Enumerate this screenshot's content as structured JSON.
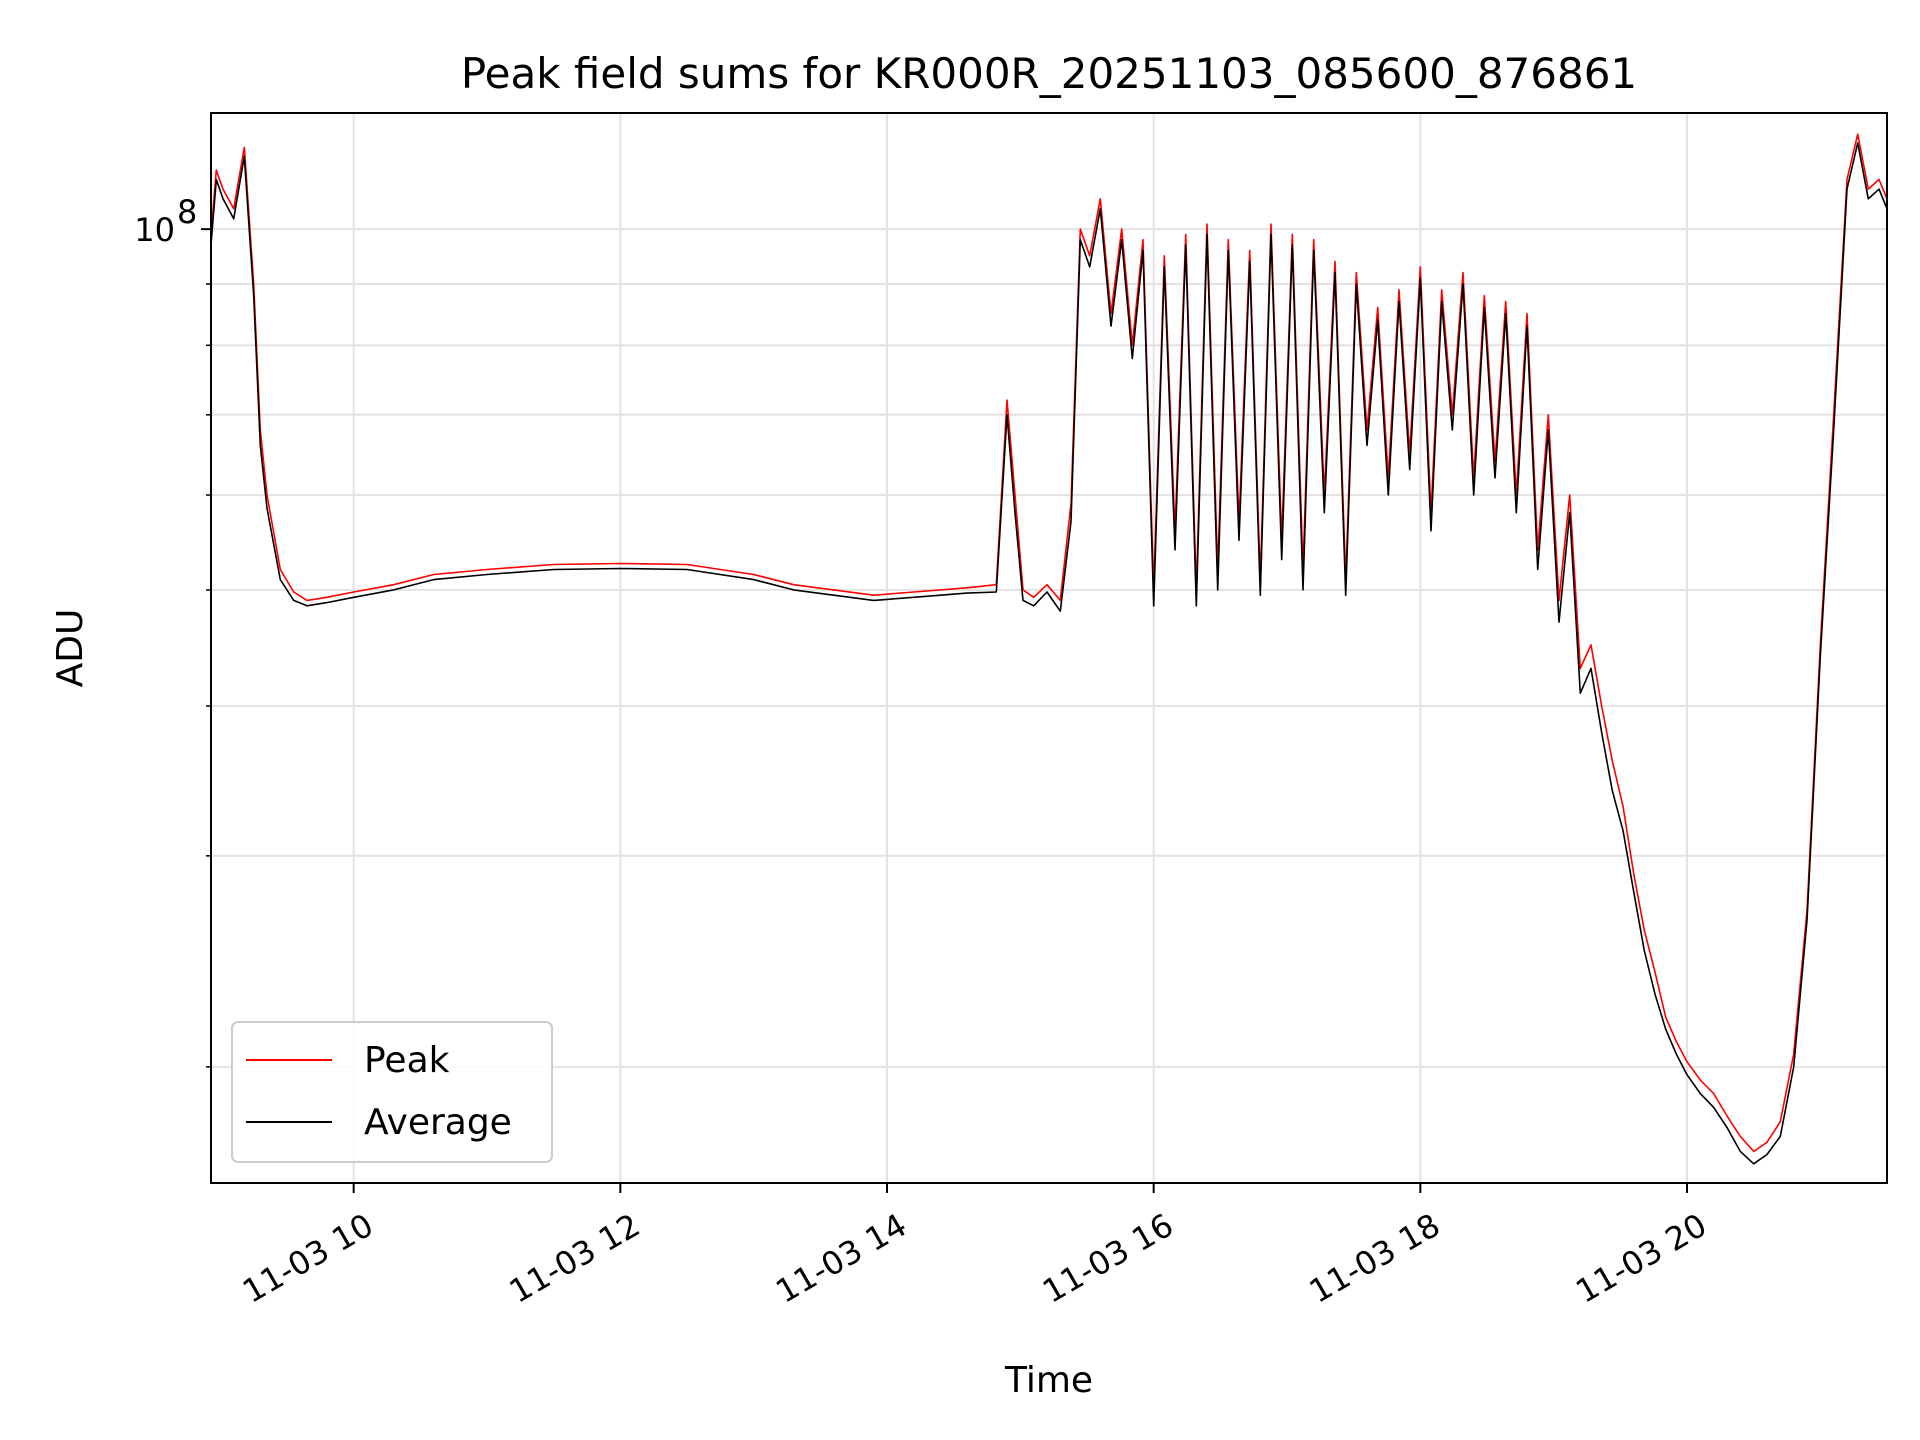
{
  "chart_data": {
    "type": "line",
    "title": "Peak field sums for KR000R_20251103_085600_876861",
    "xlabel": "Time",
    "ylabel": "ADU",
    "yscale": "log",
    "xlim": [
      8.93,
      21.5
    ],
    "ylim": [
      16000000,
      125000000
    ],
    "x_ticks": [
      {
        "value": 10,
        "label": "11-03 10"
      },
      {
        "value": 12,
        "label": "11-03 12"
      },
      {
        "value": 14,
        "label": "11-03 14"
      },
      {
        "value": 16,
        "label": "11-03 16"
      },
      {
        "value": 18,
        "label": "11-03 18"
      },
      {
        "value": 20,
        "label": "11-03 20"
      }
    ],
    "y_ticks": [
      {
        "value": 100000000,
        "label": "10",
        "label_exp": "8"
      }
    ],
    "y_minor_ticks": [
      20000000,
      30000000,
      40000000,
      50000000,
      60000000,
      70000000,
      80000000,
      90000000
    ],
    "grid": true,
    "legend_position": "lower-left",
    "series": [
      {
        "name": "Peak",
        "color": "#ff0000",
        "x": [
          8.93,
          8.97,
          9.02,
          9.1,
          9.18,
          9.25,
          9.3,
          9.35,
          9.45,
          9.55,
          9.65,
          9.8,
          10.0,
          10.3,
          10.6,
          11.0,
          11.5,
          12.0,
          12.5,
          13.0,
          13.3,
          13.6,
          13.9,
          14.2,
          14.6,
          14.82,
          14.9,
          14.96,
          15.02,
          15.1,
          15.2,
          15.3,
          15.38,
          15.45,
          15.52,
          15.6,
          15.68,
          15.76,
          15.84,
          15.92,
          16.0,
          16.08,
          16.16,
          16.24,
          16.32,
          16.4,
          16.48,
          16.56,
          16.64,
          16.72,
          16.8,
          16.88,
          16.96,
          17.04,
          17.12,
          17.2,
          17.28,
          17.36,
          17.44,
          17.52,
          17.6,
          17.68,
          17.76,
          17.84,
          17.92,
          18.0,
          18.08,
          18.16,
          18.24,
          18.32,
          18.4,
          18.48,
          18.56,
          18.64,
          18.72,
          18.8,
          18.88,
          18.96,
          19.04,
          19.12,
          19.2,
          19.28,
          19.36,
          19.44,
          19.52,
          19.6,
          19.68,
          19.76,
          19.84,
          19.92,
          20.0,
          20.1,
          20.2,
          20.3,
          20.4,
          20.5,
          20.6,
          20.7,
          20.8,
          20.9,
          21.0,
          21.1,
          21.2,
          21.28,
          21.36,
          21.44,
          21.5
        ],
        "values": [
          99000000,
          112000000,
          108000000,
          104000000,
          117000000,
          90000000,
          68000000,
          60000000,
          52000000,
          49800000,
          49000000,
          49300000,
          49800000,
          50500000,
          51500000,
          52000000,
          52500000,
          52600000,
          52500000,
          51500000,
          50500000,
          50000000,
          49500000,
          49800000,
          50200000,
          50500000,
          72000000,
          60000000,
          50000000,
          49300000,
          50500000,
          49000000,
          59000000,
          100000000,
          95000000,
          106000000,
          85000000,
          100000000,
          80000000,
          98000000,
          50000000,
          95000000,
          56000000,
          99000000,
          50000000,
          101000000,
          52000000,
          98000000,
          57000000,
          96000000,
          51000000,
          101000000,
          55000000,
          99000000,
          52000000,
          98000000,
          60000000,
          94000000,
          51000000,
          92000000,
          68000000,
          86000000,
          62000000,
          89000000,
          65000000,
          93000000,
          58000000,
          89000000,
          70000000,
          92000000,
          62000000,
          88000000,
          64000000,
          87000000,
          60000000,
          85000000,
          54000000,
          70000000,
          49000000,
          60000000,
          43000000,
          45000000,
          40000000,
          36000000,
          33000000,
          29000000,
          26000000,
          24000000,
          22000000,
          21000000,
          20200000,
          19500000,
          19000000,
          18200000,
          17500000,
          17000000,
          17300000,
          18000000,
          20500000,
          27000000,
          45000000,
          70000000,
          110000000,
          120000000,
          108000000,
          110000000,
          106000000
        ]
      },
      {
        "name": "Average",
        "color": "#000000",
        "x": [
          8.93,
          8.97,
          9.02,
          9.1,
          9.18,
          9.25,
          9.3,
          9.35,
          9.45,
          9.55,
          9.65,
          9.8,
          10.0,
          10.3,
          10.6,
          11.0,
          11.5,
          12.0,
          12.5,
          13.0,
          13.3,
          13.6,
          13.9,
          14.2,
          14.6,
          14.82,
          14.9,
          14.96,
          15.02,
          15.1,
          15.2,
          15.3,
          15.38,
          15.45,
          15.52,
          15.6,
          15.68,
          15.76,
          15.84,
          15.92,
          16.0,
          16.08,
          16.16,
          16.24,
          16.32,
          16.4,
          16.48,
          16.56,
          16.64,
          16.72,
          16.8,
          16.88,
          16.96,
          17.04,
          17.12,
          17.2,
          17.28,
          17.36,
          17.44,
          17.52,
          17.6,
          17.68,
          17.76,
          17.84,
          17.92,
          18.0,
          18.08,
          18.16,
          18.24,
          18.32,
          18.4,
          18.48,
          18.56,
          18.64,
          18.72,
          18.8,
          18.88,
          18.96,
          19.04,
          19.12,
          19.2,
          19.28,
          19.36,
          19.44,
          19.52,
          19.6,
          19.68,
          19.76,
          19.84,
          19.92,
          20.0,
          20.1,
          20.2,
          20.3,
          20.4,
          20.5,
          20.6,
          20.7,
          20.8,
          20.9,
          21.0,
          21.1,
          21.2,
          21.28,
          21.36,
          21.44,
          21.5
        ],
        "values": [
          97000000,
          110000000,
          106000000,
          102000000,
          115000000,
          88000000,
          66000000,
          58500000,
          51000000,
          49000000,
          48500000,
          48800000,
          49300000,
          50000000,
          51000000,
          51500000,
          52000000,
          52100000,
          52000000,
          51000000,
          50000000,
          49500000,
          49000000,
          49300000,
          49700000,
          49800000,
          70000000,
          58000000,
          49000000,
          48500000,
          49800000,
          48000000,
          57000000,
          98000000,
          93000000,
          104000000,
          83000000,
          98000000,
          78000000,
          96000000,
          48500000,
          93000000,
          54000000,
          97000000,
          48500000,
          99000000,
          50000000,
          96000000,
          55000000,
          94000000,
          49500000,
          99000000,
          53000000,
          97000000,
          50000000,
          96000000,
          58000000,
          92000000,
          49500000,
          90000000,
          66000000,
          84000000,
          60000000,
          87000000,
          63000000,
          91000000,
          56000000,
          87000000,
          68000000,
          90000000,
          60000000,
          86000000,
          62000000,
          85000000,
          58000000,
          83000000,
          52000000,
          68000000,
          47000000,
          58000000,
          41000000,
          43000000,
          38000000,
          34000000,
          31500000,
          28000000,
          25000000,
          23000000,
          21500000,
          20500000,
          19700000,
          19000000,
          18500000,
          17800000,
          17000000,
          16600000,
          16900000,
          17500000,
          20000000,
          26500000,
          44000000,
          68000000,
          108000000,
          118000000,
          106000000,
          108000000,
          104000000
        ]
      }
    ]
  }
}
